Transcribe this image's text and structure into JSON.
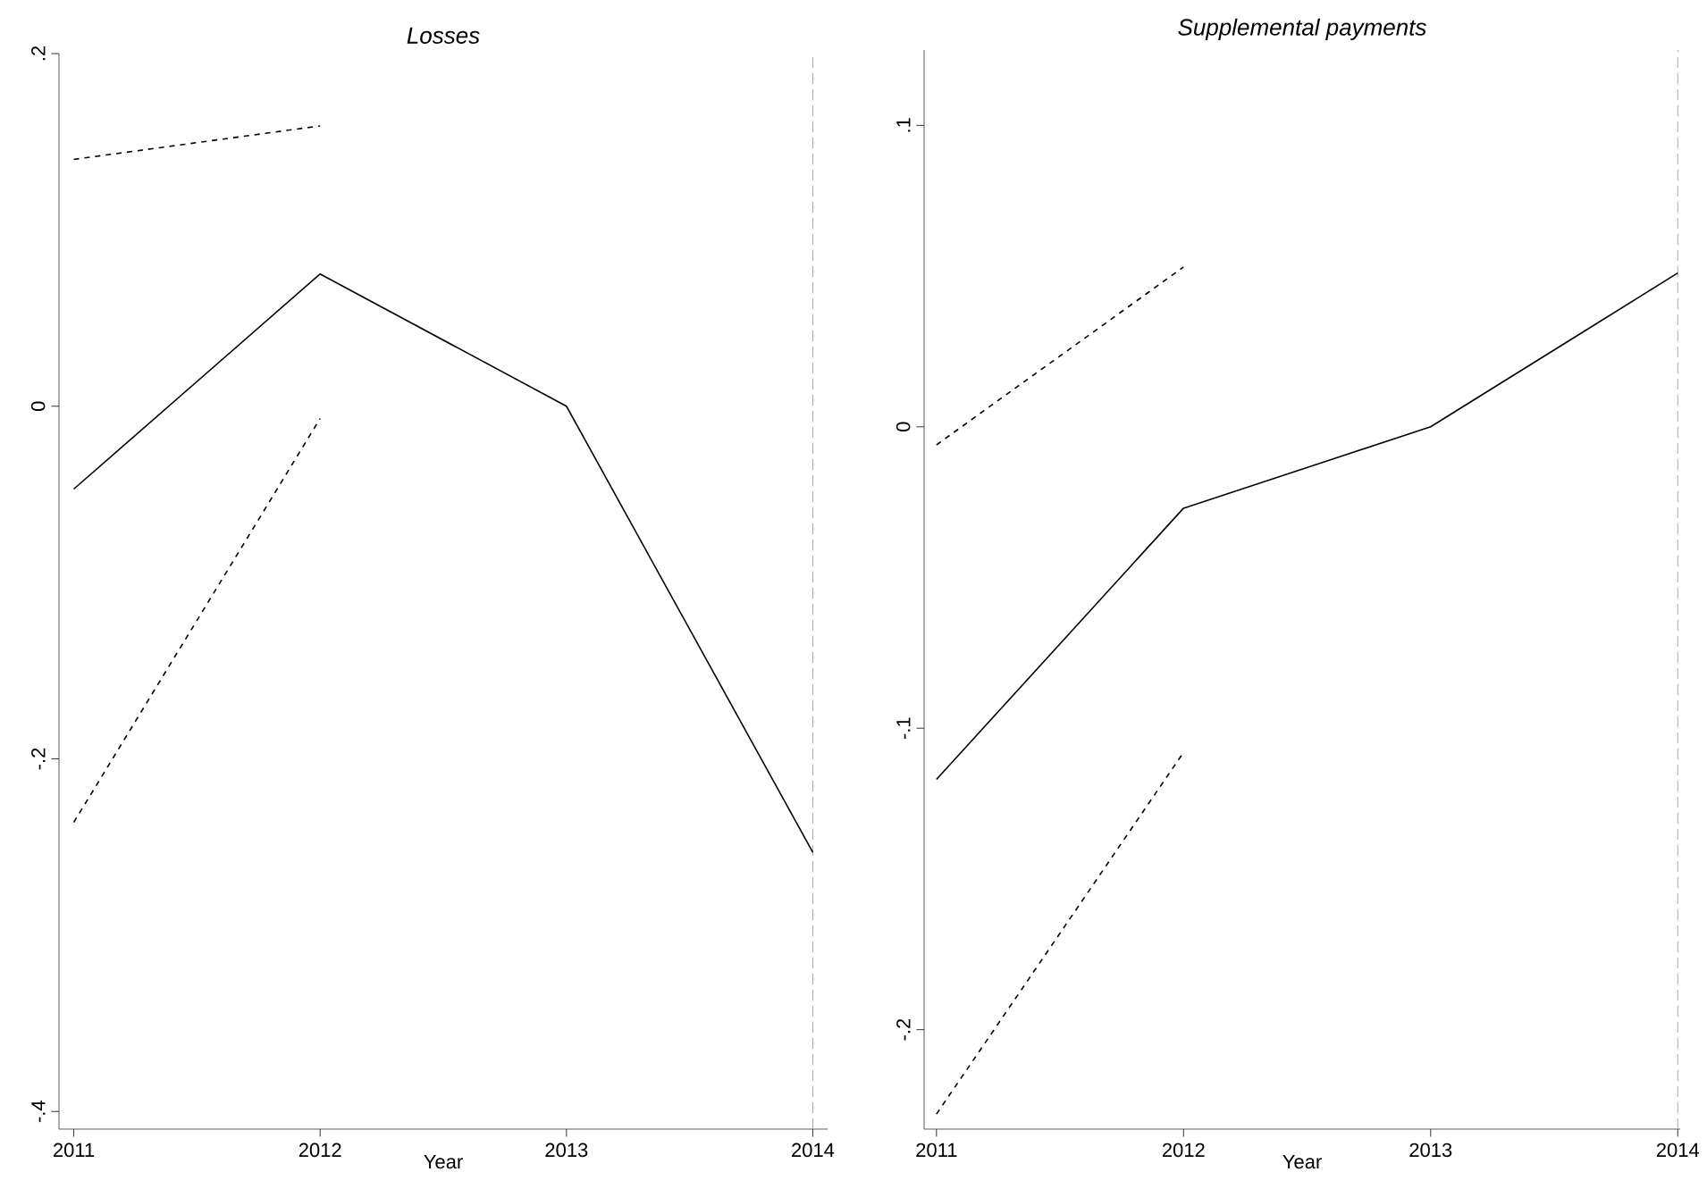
{
  "chart_data": [
    {
      "type": "line",
      "title": "Losses",
      "xlabel": "Year",
      "x": [
        2011,
        2012,
        2013,
        2014
      ],
      "series": [
        {
          "color": "#000000",
          "values": [
            -0.047,
            0.075,
            0,
            -0.253
          ],
          "line_style": "solid"
        },
        {
          "color": "#000000",
          "values": [
            0.14,
            0.159,
            null,
            null
          ],
          "line_style": "dashed"
        },
        {
          "color": "#000000",
          "values": [
            -0.236,
            -0.007,
            null,
            null
          ],
          "line_style": "dashed"
        }
      ],
      "xlim": [
        2010.94,
        2014.06
      ],
      "xticks": [
        2011,
        2012,
        2013,
        2014
      ],
      "ylim": [
        -0.41,
        0.2
      ],
      "yticks": [
        {
          "value": -0.4,
          "label": "-.4"
        },
        {
          "value": -0.2,
          "label": "-.2"
        },
        {
          "value": 0,
          "label": "0"
        },
        {
          "value": 0.2,
          "label": ".2"
        }
      ],
      "ref_lines": [
        {
          "axis": "x",
          "value": 2014,
          "color": "#c08080",
          "line_style": "dashed"
        }
      ],
      "grid": false,
      "legend": false,
      "marker": "none"
    },
    {
      "type": "line",
      "title": "Supplemental payments",
      "xlabel": "Year",
      "x": [
        2011,
        2012,
        2013,
        2014
      ],
      "series": [
        {
          "color": "#000000",
          "values": [
            -0.117,
            -0.027,
            0,
            0.051
          ],
          "line_style": "solid"
        },
        {
          "color": "#000000",
          "values": [
            -0.006,
            0.053,
            null,
            null
          ],
          "line_style": "dashed"
        },
        {
          "color": "#000000",
          "values": [
            -0.228,
            -0.108,
            null,
            null
          ],
          "line_style": "dashed"
        }
      ],
      "xlim": [
        2010.95,
        2014.01
      ],
      "xticks": [
        2011,
        2012,
        2013,
        2014
      ],
      "ylim": [
        -0.233,
        0.125
      ],
      "yticks": [
        {
          "value": -0.2,
          "label": "-.2"
        },
        {
          "value": -0.1,
          "label": "-.1"
        },
        {
          "value": 0,
          "label": "0"
        },
        {
          "value": 0.1,
          "label": ".1"
        }
      ],
      "ref_lines": [
        {
          "axis": "x",
          "value": 2014,
          "color": "#c08080",
          "line_style": "dashed"
        }
      ],
      "grid": false,
      "legend": false,
      "marker": "none"
    }
  ]
}
